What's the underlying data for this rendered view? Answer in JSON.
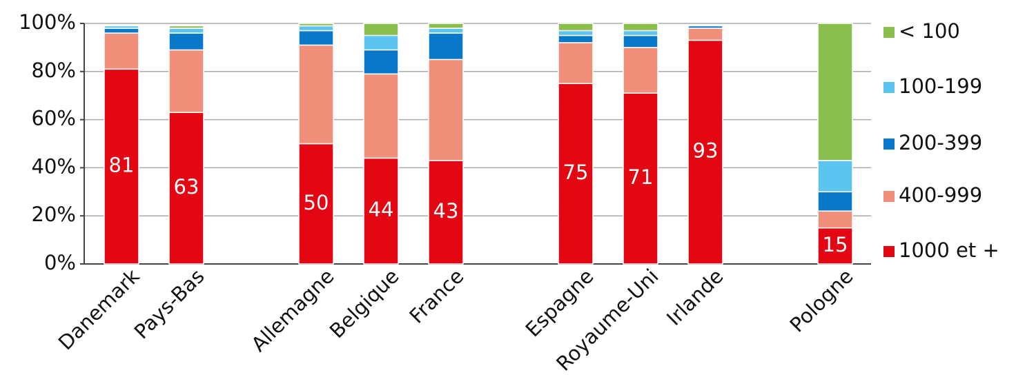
{
  "chart_data": {
    "type": "stacked_bar",
    "categories": [
      "Danemark",
      "Pays-Bas",
      null,
      "Allemagne",
      "Belgique",
      "France",
      null,
      "Espagne",
      "Royaume-Uni",
      "Irlande",
      null,
      "Pologne"
    ],
    "series": [
      {
        "name": "1000 et +",
        "color": "#e30613",
        "data_labels": true,
        "values": [
          81,
          63,
          null,
          50,
          44,
          43,
          null,
          75,
          71,
          93,
          null,
          15
        ]
      },
      {
        "name": "400-999",
        "color": "#f0907a",
        "values": [
          15,
          26,
          null,
          41,
          35,
          42,
          null,
          17,
          19,
          5,
          null,
          7
        ]
      },
      {
        "name": "200-399",
        "color": "#0a78c8",
        "values": [
          2,
          7,
          null,
          6,
          10,
          11,
          null,
          3,
          5,
          1,
          null,
          8
        ]
      },
      {
        "name": "100-199",
        "color": "#5bc5ef",
        "values": [
          1,
          2,
          null,
          2,
          6,
          2,
          null,
          2,
          2,
          0,
          null,
          13
        ]
      },
      {
        "name": "< 100",
        "color": "#8bbf4d",
        "values": [
          0,
          1,
          null,
          1,
          5,
          2,
          null,
          3,
          3,
          0,
          null,
          57
        ]
      }
    ],
    "ylim": [
      0,
      100
    ],
    "yticks": [
      {
        "value": 0,
        "label": "0%"
      },
      {
        "value": 20,
        "label": "20%"
      },
      {
        "value": 40,
        "label": "40%"
      },
      {
        "value": 60,
        "label": "60%"
      },
      {
        "value": 80,
        "label": "80%"
      },
      {
        "value": 100,
        "label": "100%"
      }
    ],
    "grid": true,
    "legend": "right"
  }
}
